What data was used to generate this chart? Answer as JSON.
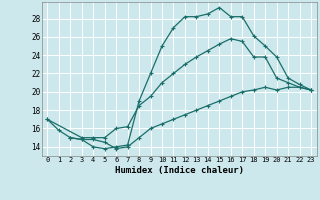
{
  "xlabel": "Humidex (Indice chaleur)",
  "ylabel": "",
  "bg_color": "#cce8ec",
  "grid_color": "#ffffff",
  "line_color": "#1a6e6a",
  "xlim": [
    -0.5,
    23.5
  ],
  "ylim": [
    13.0,
    29.8
  ],
  "yticks": [
    14,
    16,
    18,
    20,
    22,
    24,
    26,
    28
  ],
  "xticks": [
    0,
    1,
    2,
    3,
    4,
    5,
    6,
    7,
    8,
    9,
    10,
    11,
    12,
    13,
    14,
    15,
    16,
    17,
    18,
    19,
    20,
    21,
    22,
    23
  ],
  "curve1_x": [
    0,
    1,
    2,
    3,
    4,
    5,
    6,
    7,
    8,
    9,
    10,
    11,
    12,
    13,
    14,
    15,
    16,
    17,
    18,
    19,
    20,
    21,
    22,
    23
  ],
  "curve1_y": [
    17.0,
    15.8,
    15.0,
    14.8,
    14.0,
    13.8,
    14.0,
    14.2,
    19.0,
    22.0,
    25.0,
    27.0,
    28.2,
    28.2,
    28.5,
    29.2,
    28.2,
    28.2,
    26.1,
    25.0,
    23.8,
    21.5,
    20.8,
    20.2
  ],
  "curve2_x": [
    0,
    3,
    4,
    5,
    6,
    7,
    8,
    9,
    10,
    11,
    12,
    13,
    14,
    15,
    16,
    17,
    18,
    19,
    20,
    21,
    22,
    23
  ],
  "curve2_y": [
    17.0,
    15.0,
    15.0,
    15.0,
    16.0,
    16.2,
    18.5,
    19.5,
    21.0,
    22.0,
    23.0,
    23.8,
    24.5,
    25.2,
    25.8,
    25.5,
    23.8,
    23.8,
    21.5,
    21.0,
    20.5,
    20.2
  ],
  "curve3_x": [
    2,
    3,
    4,
    5,
    6,
    7,
    8,
    9,
    10,
    11,
    12,
    13,
    14,
    15,
    16,
    17,
    18,
    19,
    20,
    21,
    22,
    23
  ],
  "curve3_y": [
    15.0,
    14.8,
    14.8,
    14.5,
    13.8,
    14.0,
    15.0,
    16.0,
    16.5,
    17.0,
    17.5,
    18.0,
    18.5,
    19.0,
    19.5,
    20.0,
    20.2,
    20.5,
    20.2,
    20.5,
    20.5,
    20.2
  ],
  "marker": "+",
  "markersize": 3,
  "linewidth": 0.9,
  "font_family": "monospace"
}
